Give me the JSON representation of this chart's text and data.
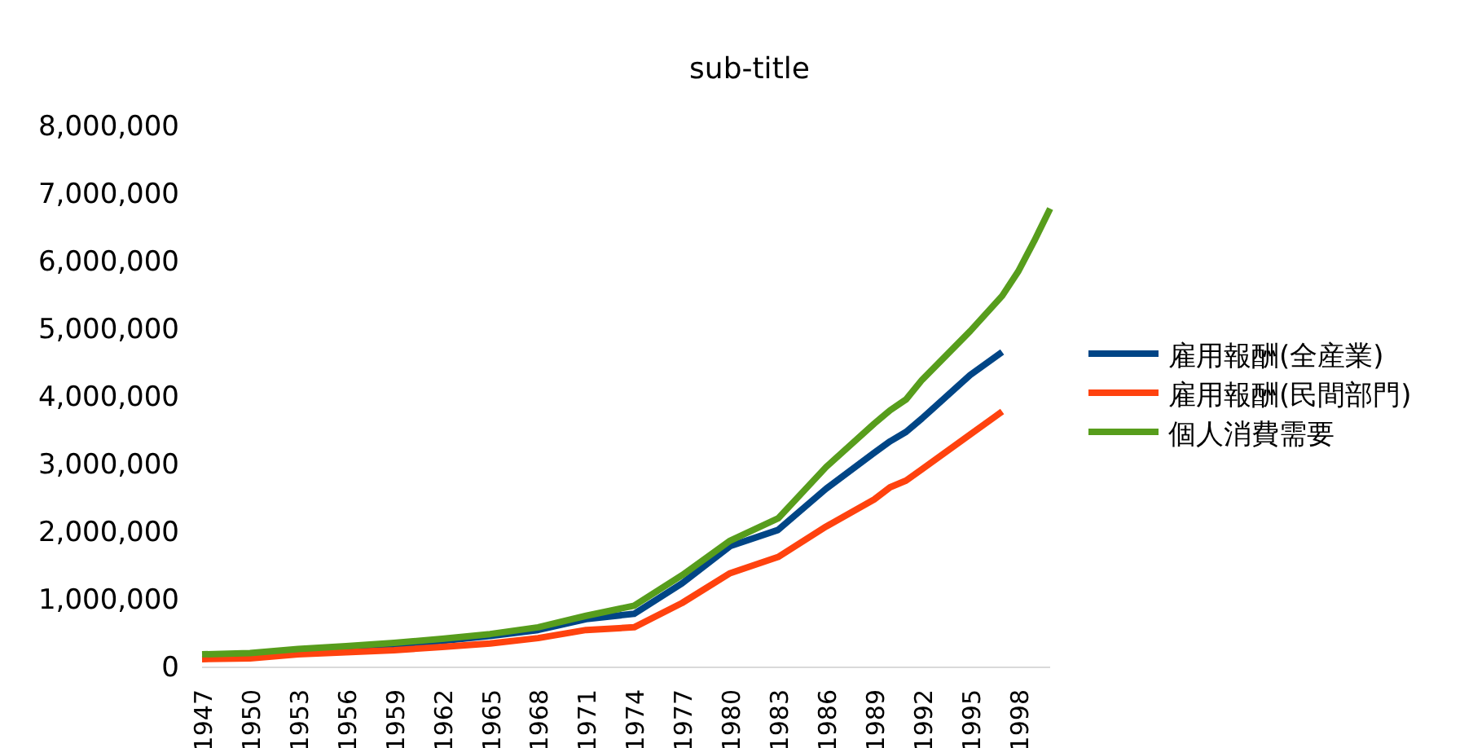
{
  "chart_data": {
    "type": "line",
    "title": "sub-title",
    "xlim": [
      1947,
      2000
    ],
    "xticks": [
      1947,
      1950,
      1953,
      1956,
      1959,
      1962,
      1965,
      1968,
      1971,
      1974,
      1977,
      1980,
      1983,
      1986,
      1989,
      1992,
      1995,
      1998
    ],
    "ylim": [
      0,
      8000000
    ],
    "yticks": [
      {
        "value": 0,
        "label": "0"
      },
      {
        "value": 1000000,
        "label": "1,000,000"
      },
      {
        "value": 2000000,
        "label": "2,000,000"
      },
      {
        "value": 3000000,
        "label": "3,000,000"
      },
      {
        "value": 4000000,
        "label": "4,000,000"
      },
      {
        "value": 5000000,
        "label": "5,000,000"
      },
      {
        "value": 6000000,
        "label": "6,000,000"
      },
      {
        "value": 7000000,
        "label": "7,000,000"
      },
      {
        "value": 8000000,
        "label": "8,000,000"
      }
    ],
    "grid": false,
    "legend": "right",
    "line_style": "solid",
    "marker": "none",
    "series": [
      {
        "name": "雇用報酬(全産業)",
        "color": "#004586",
        "x": [
          1956,
          1959,
          1962,
          1965,
          1968,
          1971,
          1974,
          1977,
          1980,
          1983,
          1986,
          1989,
          1990,
          1991,
          1992,
          1995,
          1997
        ],
        "values": [
          270000,
          320000,
          380000,
          450000,
          540000,
          700000,
          780000,
          1230000,
          1780000,
          2020000,
          2630000,
          3160000,
          3330000,
          3470000,
          3670000,
          4310000,
          4650000
        ]
      },
      {
        "name": "雇用報酬(民間部門)",
        "color": "#ff420e",
        "x": [
          1947,
          1950,
          1953,
          1956,
          1959,
          1962,
          1965,
          1968,
          1971,
          1974,
          1977,
          1980,
          1983,
          1986,
          1989,
          1990,
          1991,
          1992,
          1995,
          1997
        ],
        "values": [
          110000,
          120000,
          180000,
          210000,
          240000,
          290000,
          340000,
          420000,
          540000,
          580000,
          940000,
          1380000,
          1620000,
          2070000,
          2470000,
          2650000,
          2750000,
          2920000,
          3430000,
          3770000
        ]
      },
      {
        "name": "個人消費需要",
        "color": "#579d1c",
        "x": [
          1947,
          1950,
          1953,
          1956,
          1959,
          1962,
          1965,
          1968,
          1971,
          1974,
          1977,
          1980,
          1983,
          1986,
          1989,
          1990,
          1991,
          1992,
          1995,
          1997,
          1998,
          1999,
          2000
        ],
        "values": [
          180000,
          200000,
          260000,
          300000,
          350000,
          410000,
          480000,
          580000,
          750000,
          900000,
          1350000,
          1860000,
          2190000,
          2950000,
          3590000,
          3790000,
          3950000,
          4240000,
          4960000,
          5480000,
          5840000,
          6290000,
          6770000
        ]
      }
    ]
  }
}
